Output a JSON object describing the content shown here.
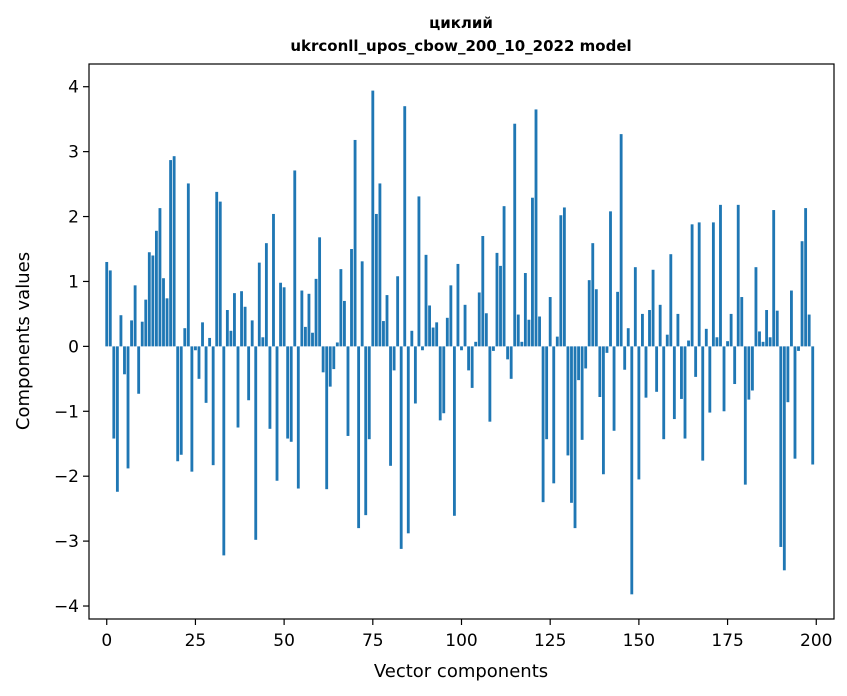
{
  "chart_data": {
    "type": "bar",
    "title": [
      "циклий",
      "ukrconll_upos_cbow_200_10_2022 model"
    ],
    "xlabel": "Vector components",
    "ylabel": "Components values",
    "xlim": [
      -5,
      205
    ],
    "ylim": [
      -4.2,
      4.35
    ],
    "xticks": [
      0,
      25,
      50,
      75,
      100,
      125,
      150,
      175,
      200
    ],
    "yticks": [
      -4,
      -3,
      -2,
      -1,
      0,
      1,
      2,
      3,
      4
    ],
    "grid": false,
    "bar_color": "#1f77b4",
    "x": [
      0,
      1,
      2,
      3,
      4,
      5,
      6,
      7,
      8,
      9,
      10,
      11,
      12,
      13,
      14,
      15,
      16,
      17,
      18,
      19,
      20,
      21,
      22,
      23,
      24,
      25,
      26,
      27,
      28,
      29,
      30,
      31,
      32,
      33,
      34,
      35,
      36,
      37,
      38,
      39,
      40,
      41,
      42,
      43,
      44,
      45,
      46,
      47,
      48,
      49,
      50,
      51,
      52,
      53,
      54,
      55,
      56,
      57,
      58,
      59,
      60,
      61,
      62,
      63,
      64,
      65,
      66,
      67,
      68,
      69,
      70,
      71,
      72,
      73,
      74,
      75,
      76,
      77,
      78,
      79,
      80,
      81,
      82,
      83,
      84,
      85,
      86,
      87,
      88,
      89,
      90,
      91,
      92,
      93,
      94,
      95,
      96,
      97,
      98,
      99,
      100,
      101,
      102,
      103,
      104,
      105,
      106,
      107,
      108,
      109,
      110,
      111,
      112,
      113,
      114,
      115,
      116,
      117,
      118,
      119,
      120,
      121,
      122,
      123,
      124,
      125,
      126,
      127,
      128,
      129,
      130,
      131,
      132,
      133,
      134,
      135,
      136,
      137,
      138,
      139,
      140,
      141,
      142,
      143,
      144,
      145,
      146,
      147,
      148,
      149,
      150,
      151,
      152,
      153,
      154,
      155,
      156,
      157,
      158,
      159,
      160,
      161,
      162,
      163,
      164,
      165,
      166,
      167,
      168,
      169,
      170,
      171,
      172,
      173,
      174,
      175,
      176,
      177,
      178,
      179,
      180,
      181,
      182,
      183,
      184,
      185,
      186,
      187,
      188,
      189,
      190,
      191,
      192,
      193,
      194,
      195,
      196,
      197,
      198,
      199
    ],
    "values": [
      1.3,
      1.17,
      -1.42,
      -2.24,
      0.48,
      -0.43,
      -1.88,
      0.4,
      0.94,
      -0.73,
      0.38,
      0.72,
      1.45,
      1.4,
      1.78,
      2.13,
      1.05,
      0.74,
      2.87,
      2.93,
      -1.77,
      -1.67,
      0.28,
      2.51,
      -1.93,
      -0.06,
      -0.5,
      0.37,
      -0.87,
      0.13,
      -1.83,
      2.38,
      2.23,
      -3.22,
      0.56,
      0.24,
      0.82,
      -1.25,
      0.85,
      0.61,
      -0.83,
      0.4,
      -2.98,
      1.29,
      0.14,
      1.59,
      -1.27,
      2.04,
      -2.07,
      0.98,
      0.91,
      -1.42,
      -1.47,
      2.71,
      -2.19,
      0.86,
      0.3,
      0.81,
      0.21,
      1.04,
      1.68,
      -0.4,
      -2.2,
      -0.62,
      -0.35,
      0.06,
      1.19,
      0.7,
      -1.38,
      1.5,
      3.18,
      -2.8,
      1.31,
      -2.6,
      -1.43,
      3.94,
      2.04,
      2.51,
      0.39,
      0.79,
      -1.84,
      -0.37,
      1.08,
      -3.12,
      3.7,
      -2.88,
      0.24,
      -0.88,
      2.31,
      -0.06,
      1.41,
      0.63,
      0.29,
      0.37,
      -1.14,
      -1.03,
      0.44,
      0.94,
      -2.61,
      1.27,
      -0.06,
      0.64,
      -0.37,
      -0.64,
      0.07,
      0.83,
      1.7,
      0.51,
      -1.16,
      -0.07,
      1.44,
      1.24,
      2.16,
      -0.2,
      -0.5,
      3.43,
      0.49,
      0.07,
      1.13,
      0.41,
      2.29,
      3.65,
      0.46,
      -2.4,
      -1.43,
      0.76,
      -2.11,
      0.15,
      2.02,
      2.14,
      -1.68,
      -2.41,
      -2.8,
      -0.52,
      -1.44,
      -0.34,
      1.02,
      1.59,
      0.88,
      -0.78,
      -1.97,
      -0.1,
      2.08,
      -1.3,
      0.84,
      3.27,
      -0.36,
      0.28,
      -3.82,
      1.22,
      -2.05,
      0.5,
      -0.79,
      0.56,
      1.18,
      -0.7,
      0.64,
      -1.43,
      0.18,
      1.42,
      -1.12,
      0.5,
      -0.81,
      -1.42,
      0.09,
      1.88,
      -0.47,
      1.91,
      -1.76,
      0.27,
      -1.02,
      1.91,
      0.14,
      2.18,
      -1.0,
      0.08,
      0.5,
      -0.58,
      2.18,
      0.76,
      -2.13,
      -0.82,
      -0.68,
      1.22,
      0.23,
      0.07,
      0.56,
      0.14,
      2.1,
      0.55,
      -3.09,
      -3.45,
      -0.86,
      0.86,
      -1.73,
      -0.07,
      1.62,
      2.13,
      0.49,
      -1.82
    ]
  }
}
